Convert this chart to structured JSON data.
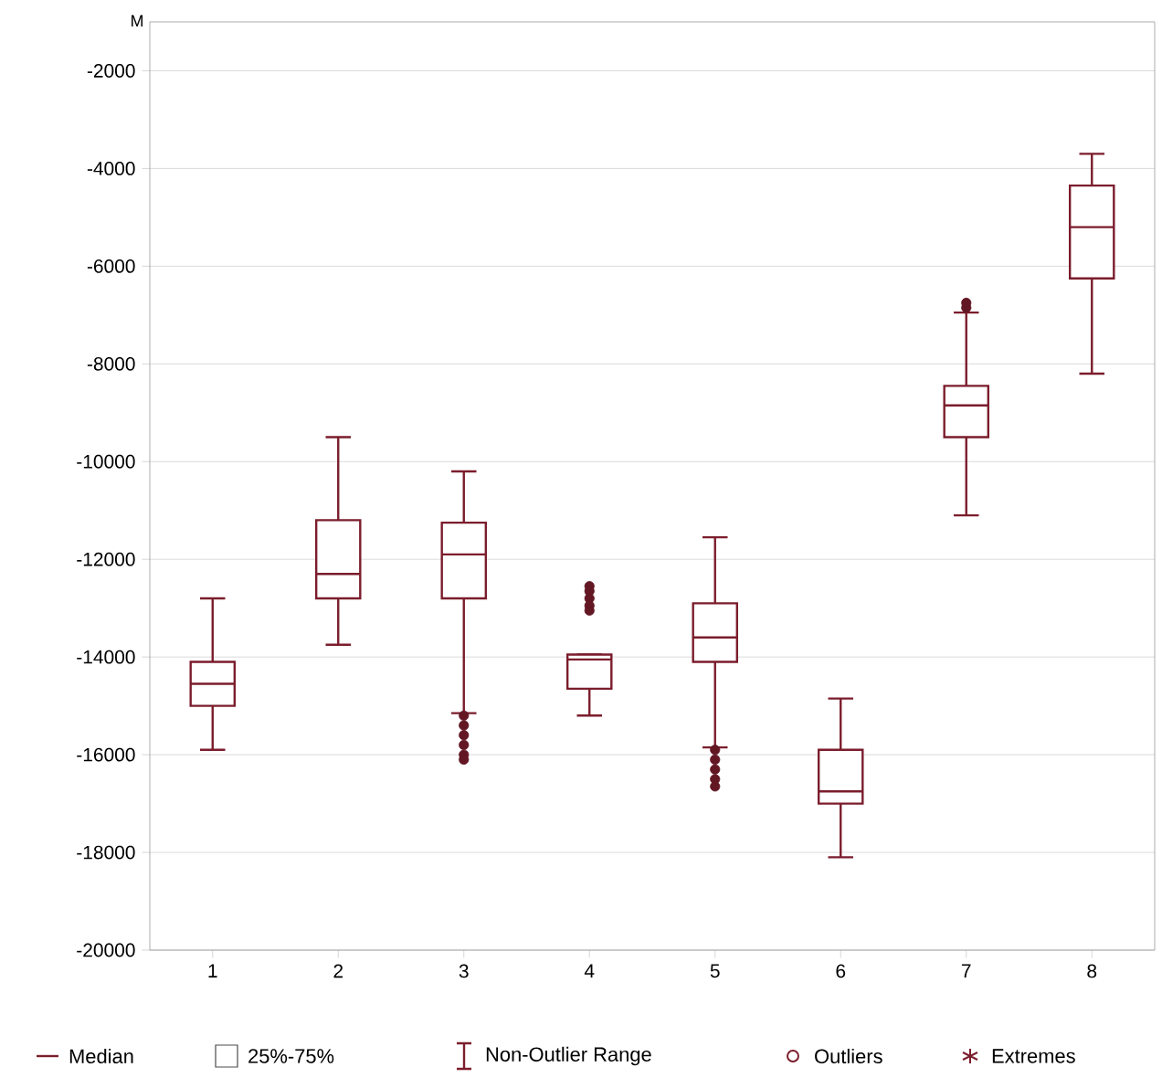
{
  "chart_data": {
    "type": "box",
    "ylabel": "M",
    "categories": [
      "1",
      "2",
      "3",
      "4",
      "5",
      "6",
      "7",
      "8"
    ],
    "series": [
      {
        "color": "#7b1d2c",
        "boxes": [
          {
            "low": -15900,
            "q1": -15000,
            "median": -14550,
            "q3": -14100,
            "high": -12800
          },
          {
            "low": -13750,
            "q1": -12800,
            "median": -12300,
            "q3": -11200,
            "high": -9500
          },
          {
            "low": -15150,
            "q1": -12800,
            "median": -11900,
            "q3": -11250,
            "high": -10200,
            "outliers": [
              -15200,
              -15400,
              -15600,
              -15800,
              -16000,
              -16100
            ]
          },
          {
            "low": -15200,
            "q1": -14650,
            "median": -14050,
            "q3": -13950,
            "high": -13950,
            "outliers": [
              -12550,
              -12650,
              -12800,
              -12950,
              -13050
            ]
          },
          {
            "low": -15850,
            "q1": -14100,
            "median": -13600,
            "q3": -12900,
            "high": -11550,
            "outliers": [
              -15900,
              -16100,
              -16300,
              -16500,
              -16650
            ]
          },
          {
            "low": -18100,
            "q1": -17000,
            "median": -16750,
            "q3": -15900,
            "high": -14850
          },
          {
            "low": -11100,
            "q1": -9500,
            "median": -8850,
            "q3": -8450,
            "high": -6950,
            "outliers": [
              -6750,
              -6850
            ]
          },
          {
            "low": -8200,
            "q1": -6250,
            "median": -5200,
            "q3": -4350,
            "high": -3700
          }
        ]
      }
    ],
    "ylim": [
      -20000,
      -1000
    ],
    "yticks": [
      -20000,
      -18000,
      -16000,
      -14000,
      -12000,
      -10000,
      -8000,
      -6000,
      -4000,
      -2000
    ],
    "grid": "y",
    "marker": "circle",
    "annotations": [
      "Median",
      "25%-75%",
      "Non-Outlier Range",
      "Outliers",
      "Extremes"
    ]
  }
}
